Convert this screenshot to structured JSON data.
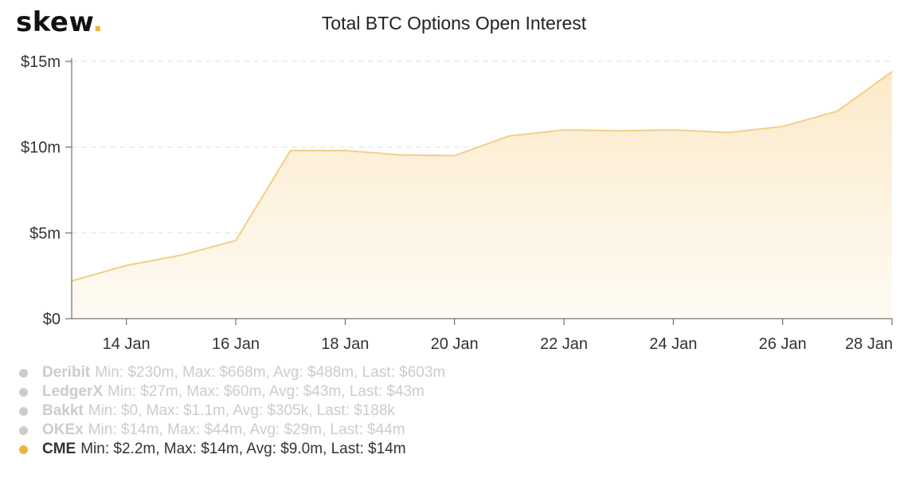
{
  "logo": {
    "text": "skew",
    "dot": "."
  },
  "colors": {
    "accent": "#f0b43c",
    "line": "#f2cf88",
    "inactive": "#cccccc"
  },
  "chart_data": {
    "type": "area",
    "title": "Total BTC Options Open Interest",
    "xlabel": "",
    "ylabel": "",
    "x": [
      "13 Jan",
      "14 Jan",
      "15 Jan",
      "16 Jan",
      "17 Jan",
      "18 Jan",
      "19 Jan",
      "20 Jan",
      "21 Jan",
      "22 Jan",
      "23 Jan",
      "24 Jan",
      "25 Jan",
      "26 Jan",
      "27 Jan",
      "28 Jan"
    ],
    "x_ticks": [
      "14 Jan",
      "16 Jan",
      "18 Jan",
      "20 Jan",
      "22 Jan",
      "24 Jan",
      "26 Jan",
      "28 Jan"
    ],
    "y_ticks": [
      "$0",
      "$5m",
      "$10m",
      "$15m"
    ],
    "ylim": [
      0,
      15
    ],
    "y_unit": "$m",
    "grid": "horizontal dashed",
    "series": [
      {
        "name": "CME",
        "values": [
          2.2,
          3.1,
          3.7,
          4.55,
          9.8,
          9.8,
          9.55,
          9.5,
          10.65,
          11.0,
          10.95,
          11.0,
          10.85,
          11.2,
          12.1,
          14.4
        ]
      }
    ]
  },
  "legend": [
    {
      "name": "Deribit",
      "stats": "Min: $230m, Max: $668m, Avg: $488m, Last: $603m",
      "active": false
    },
    {
      "name": "LedgerX",
      "stats": "Min: $27m, Max: $60m, Avg: $43m, Last: $43m",
      "active": false
    },
    {
      "name": "Bakkt",
      "stats": "Min: $0, Max: $1.1m, Avg: $305k, Last: $188k",
      "active": false
    },
    {
      "name": "OKEx",
      "stats": "Min: $14m, Max: $44m, Avg: $29m, Last: $44m",
      "active": false
    },
    {
      "name": "CME",
      "stats": "Min: $2.2m, Max: $14m, Avg: $9.0m, Last: $14m",
      "active": true
    }
  ]
}
